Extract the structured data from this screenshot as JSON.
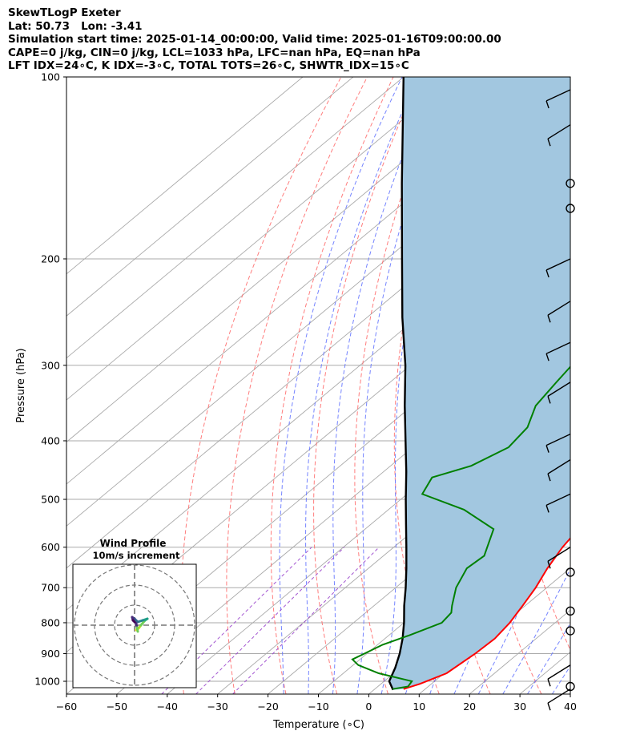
{
  "header": {
    "line1": "SkewTLogP Exeter",
    "line2": "Lat: 50.73   Lon: -3.41",
    "line3": "Simulation start time: 2025-01-14_00:00:00, Valid time: 2025-01-16T09:00:00.00",
    "line4": "CAPE=0 j/kg, CIN=0 j/kg, LCL=1033 hPa, LFC=nan hPa, EQ=nan hPa",
    "line5": "LFT IDX=24∘C, K IDX=-3∘C, TOTAL TOTS=26∘C, SHWTR_IDX=15∘C"
  },
  "inset": {
    "title": "Wind Profile",
    "subtitle": "10m/s increment"
  },
  "colors": {
    "temperature": "#ff0000",
    "dewpoint": "#008000",
    "parcel": "#000000",
    "fill": "#a2c7e0",
    "dry_adiabat": "#ff6666",
    "moist_adiabat": "#6677ff",
    "mixing_ratio": "#9944cc",
    "isotherm": "#aaaaaa"
  },
  "chart_data": {
    "type": "skew-t",
    "xlabel": "Temperature (∘C)",
    "ylabel": "Pressure (hPa)",
    "xlim": [
      -60,
      40
    ],
    "ylim": [
      1050,
      100
    ],
    "y_scale": "log",
    "x_ticks": [
      "−60",
      "−50",
      "−40",
      "−30",
      "−20",
      "−10",
      "0",
      "10",
      "20",
      "30",
      "40"
    ],
    "y_ticks": [
      "100",
      "200",
      "300",
      "400",
      "500",
      "600",
      "700",
      "800",
      "900",
      "1000"
    ],
    "grid": true,
    "temperature_profile": [
      {
        "p": 1030,
        "t": 5.7
      },
      {
        "p": 1010,
        "t": 7.7
      },
      {
        "p": 970,
        "t": 10.5
      },
      {
        "p": 900,
        "t": 11.5
      },
      {
        "p": 850,
        "t": 11.8
      },
      {
        "p": 800,
        "t": 11.0
      },
      {
        "p": 750,
        "t": 9.5
      },
      {
        "p": 700,
        "t": 7.8
      },
      {
        "p": 650,
        "t": 5.5
      },
      {
        "p": 600,
        "t": 3.5
      },
      {
        "p": 550,
        "t": 2.0
      },
      {
        "p": 500,
        "t": -0.5
      },
      {
        "p": 475,
        "t": -3.0
      },
      {
        "p": 450,
        "t": -6.0
      },
      {
        "p": 420,
        "t": -9.5
      },
      {
        "p": 400,
        "t": -12.5
      },
      {
        "p": 370,
        "t": -16.5
      },
      {
        "p": 340,
        "t": -21.0
      },
      {
        "p": 310,
        "t": -25.5
      },
      {
        "p": 290,
        "t": -29.0
      },
      {
        "p": 270,
        "t": -33.0
      },
      {
        "p": 250,
        "t": -37.5
      },
      {
        "p": 232,
        "t": -42.0
      },
      {
        "p": 220,
        "t": -45.5
      },
      {
        "p": 205,
        "t": -49.0
      },
      {
        "p": 195,
        "t": -51.5
      },
      {
        "p": 180,
        "t": -53.0
      },
      {
        "p": 165,
        "t": -55.0
      },
      {
        "p": 150,
        "t": -57.0
      },
      {
        "p": 140,
        "t": -57.5
      },
      {
        "p": 130,
        "t": -58.5
      },
      {
        "p": 115,
        "t": -61.0
      },
      {
        "p": 100,
        "t": -64.0
      }
    ],
    "dewpoint_profile": [
      {
        "p": 1030,
        "t": 3.5
      },
      {
        "p": 1020,
        "t": 6.0
      },
      {
        "p": 1000,
        "t": 5.5
      },
      {
        "p": 970,
        "t": -3.0
      },
      {
        "p": 940,
        "t": -9.0
      },
      {
        "p": 920,
        "t": -11.5
      },
      {
        "p": 900,
        "t": -10.5
      },
      {
        "p": 870,
        "t": -9.0
      },
      {
        "p": 840,
        "t": -6.0
      },
      {
        "p": 800,
        "t": -2.5
      },
      {
        "p": 770,
        "t": -3.0
      },
      {
        "p": 750,
        "t": -4.5
      },
      {
        "p": 700,
        "t": -8.0
      },
      {
        "p": 650,
        "t": -10.5
      },
      {
        "p": 620,
        "t": -10.0
      },
      {
        "p": 560,
        "t": -14.5
      },
      {
        "p": 520,
        "t": -25.0
      },
      {
        "p": 490,
        "t": -37.0
      },
      {
        "p": 460,
        "t": -39.0
      },
      {
        "p": 440,
        "t": -34.0
      },
      {
        "p": 410,
        "t": -31.0
      },
      {
        "p": 380,
        "t": -32.0
      },
      {
        "p": 350,
        "t": -35.5
      },
      {
        "p": 320,
        "t": -37.0
      },
      {
        "p": 300,
        "t": -38.0
      },
      {
        "p": 280,
        "t": -42.0
      },
      {
        "p": 260,
        "t": -45.0
      },
      {
        "p": 240,
        "t": -44.5
      },
      {
        "p": 225,
        "t": -50.0
      },
      {
        "p": 210,
        "t": -56.5
      },
      {
        "p": 195,
        "t": -61.0
      },
      {
        "p": 190,
        "t": -61.0
      },
      {
        "p": 180,
        "t": -56.0
      },
      {
        "p": 170,
        "t": -54.0
      },
      {
        "p": 160,
        "t": -53.5
      },
      {
        "p": 145,
        "t": -57.0
      },
      {
        "p": 130,
        "t": -59.0
      },
      {
        "p": 115,
        "t": -61.5
      },
      {
        "p": 100,
        "t": -64.5
      }
    ],
    "parcel_profile": [
      {
        "p": 1033,
        "t": 3.8
      },
      {
        "p": 1000,
        "t": 1.0
      },
      {
        "p": 950,
        "t": -1.0
      },
      {
        "p": 900,
        "t": -3.5
      },
      {
        "p": 850,
        "t": -6.5
      },
      {
        "p": 800,
        "t": -10.0
      },
      {
        "p": 750,
        "t": -14.0
      },
      {
        "p": 700,
        "t": -18.0
      },
      {
        "p": 650,
        "t": -22.5
      },
      {
        "p": 600,
        "t": -27.5
      },
      {
        "p": 550,
        "t": -33.0
      },
      {
        "p": 500,
        "t": -39.0
      },
      {
        "p": 450,
        "t": -45.5
      },
      {
        "p": 400,
        "t": -53.0
      },
      {
        "p": 350,
        "t": -61.5
      },
      {
        "p": 300,
        "t": -71.0
      },
      {
        "p": 250,
        "t": -83.0
      },
      {
        "p": 200,
        "t": -97.0
      },
      {
        "p": 150,
        "t": -115.0
      },
      {
        "p": 100,
        "t": -140.0
      }
    ],
    "wind_barbs": [
      {
        "p": 1030,
        "kind": "barb"
      },
      {
        "p": 1020,
        "kind": "calm"
      },
      {
        "p": 940,
        "kind": "barb"
      },
      {
        "p": 825,
        "kind": "calm"
      },
      {
        "p": 765,
        "kind": "calm"
      },
      {
        "p": 660,
        "kind": "calm"
      },
      {
        "p": 600,
        "kind": "barb"
      },
      {
        "p": 490,
        "kind": "barb"
      },
      {
        "p": 430,
        "kind": "barb"
      },
      {
        "p": 390,
        "kind": "barb"
      },
      {
        "p": 320,
        "kind": "barb"
      },
      {
        "p": 275,
        "kind": "barb"
      },
      {
        "p": 235,
        "kind": "barb"
      },
      {
        "p": 200,
        "kind": "barb"
      },
      {
        "p": 165,
        "kind": "calm"
      },
      {
        "p": 150,
        "kind": "calm"
      },
      {
        "p": 120,
        "kind": "barb"
      },
      {
        "p": 105,
        "kind": "barb"
      }
    ]
  }
}
